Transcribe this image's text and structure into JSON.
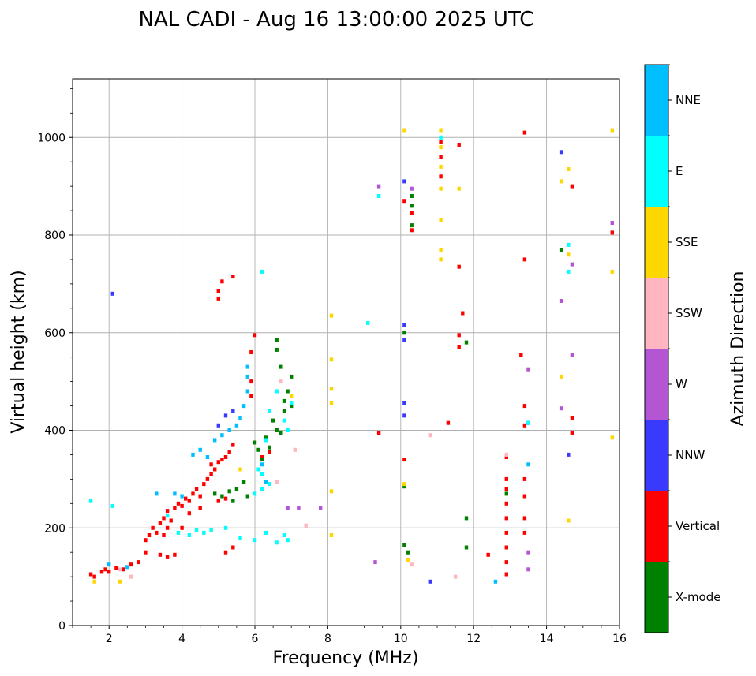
{
  "chart_data": {
    "type": "scatter",
    "title": "NAL CADI - Aug 16 13:00:00 2025 UTC",
    "xlabel": "Frequency (MHz)",
    "ylabel": "Virtual height (km)",
    "xlim": [
      1,
      16
    ],
    "ylim": [
      0,
      1120
    ],
    "xticks": [
      "2",
      "4",
      "6",
      "8",
      "10",
      "12",
      "14",
      "16"
    ],
    "yticks": [
      "0",
      "200",
      "400",
      "600",
      "800",
      "1000"
    ],
    "grid": true,
    "colorbar": {
      "title": "Azimuth Direction",
      "categories": [
        "X-mode",
        "Vertical",
        "NNW",
        "W",
        "SSW",
        "SSE",
        "E",
        "NNE"
      ],
      "colors": [
        "#008000",
        "#ff0000",
        "#3a3aff",
        "#b455d4",
        "#ffb6c1",
        "#ffd700",
        "#00ffff",
        "#00bfff"
      ]
    },
    "series": [
      {
        "name": "Vertical",
        "points": [
          [
            1.5,
            105
          ],
          [
            1.6,
            100
          ],
          [
            1.8,
            110
          ],
          [
            1.9,
            115
          ],
          [
            2.0,
            110
          ],
          [
            2.2,
            118
          ],
          [
            2.4,
            115
          ],
          [
            2.6,
            125
          ],
          [
            2.8,
            130
          ],
          [
            3.0,
            150
          ],
          [
            3.0,
            175
          ],
          [
            3.1,
            185
          ],
          [
            3.2,
            200
          ],
          [
            3.3,
            190
          ],
          [
            3.4,
            210
          ],
          [
            3.5,
            220
          ],
          [
            3.6,
            235
          ],
          [
            3.7,
            215
          ],
          [
            3.8,
            240
          ],
          [
            3.9,
            250
          ],
          [
            4.0,
            245
          ],
          [
            4.1,
            260
          ],
          [
            4.2,
            255
          ],
          [
            4.3,
            270
          ],
          [
            4.4,
            280
          ],
          [
            4.5,
            265
          ],
          [
            4.6,
            290
          ],
          [
            4.7,
            300
          ],
          [
            4.8,
            310
          ],
          [
            4.9,
            320
          ],
          [
            5.0,
            335
          ],
          [
            5.1,
            340
          ],
          [
            5.2,
            345
          ],
          [
            5.3,
            355
          ],
          [
            5.4,
            370
          ],
          [
            5.0,
            255
          ],
          [
            5.2,
            260
          ],
          [
            4.2,
            230
          ],
          [
            4.0,
            200
          ],
          [
            3.6,
            200
          ],
          [
            3.5,
            185
          ],
          [
            4.5,
            240
          ],
          [
            4.8,
            330
          ],
          [
            3.4,
            145
          ],
          [
            3.6,
            140
          ],
          [
            3.8,
            145
          ],
          [
            5.2,
            150
          ],
          [
            5.4,
            160
          ],
          [
            5.9,
            560
          ],
          [
            5.9,
            500
          ],
          [
            5.9,
            470
          ],
          [
            6.0,
            595
          ],
          [
            5.1,
            705
          ],
          [
            5.0,
            670
          ],
          [
            5.0,
            685
          ],
          [
            5.4,
            715
          ],
          [
            10.1,
            340
          ],
          [
            10.1,
            870
          ],
          [
            10.3,
            810
          ],
          [
            10.3,
            845
          ],
          [
            11.1,
            960
          ],
          [
            11.1,
            920
          ],
          [
            11.1,
            990
          ],
          [
            11.6,
            985
          ],
          [
            11.6,
            735
          ],
          [
            11.6,
            595
          ],
          [
            11.6,
            570
          ],
          [
            11.7,
            640
          ],
          [
            11.3,
            415
          ],
          [
            12.9,
            105
          ],
          [
            12.9,
            130
          ],
          [
            12.9,
            160
          ],
          [
            12.9,
            190
          ],
          [
            12.9,
            220
          ],
          [
            12.9,
            250
          ],
          [
            12.9,
            280
          ],
          [
            12.9,
            300
          ],
          [
            12.9,
            345
          ],
          [
            13.3,
            555
          ],
          [
            13.4,
            750
          ],
          [
            13.4,
            1010
          ],
          [
            13.4,
            450
          ],
          [
            13.4,
            410
          ],
          [
            13.4,
            300
          ],
          [
            13.4,
            265
          ],
          [
            13.4,
            220
          ],
          [
            13.4,
            190
          ],
          [
            12.4,
            145
          ],
          [
            14.7,
            900
          ],
          [
            14.7,
            425
          ],
          [
            14.7,
            395
          ],
          [
            15.8,
            805
          ],
          [
            9.4,
            395
          ],
          [
            6.2,
            345
          ],
          [
            6.4,
            355
          ]
        ]
      },
      {
        "name": "X-mode",
        "points": [
          [
            6.0,
            375
          ],
          [
            6.1,
            360
          ],
          [
            6.2,
            340
          ],
          [
            6.3,
            385
          ],
          [
            6.4,
            365
          ],
          [
            6.5,
            420
          ],
          [
            6.6,
            400
          ],
          [
            6.7,
            395
          ],
          [
            6.8,
            460
          ],
          [
            6.9,
            480
          ],
          [
            7.0,
            510
          ],
          [
            6.7,
            530
          ],
          [
            6.8,
            440
          ],
          [
            6.6,
            585
          ],
          [
            6.6,
            565
          ],
          [
            7.0,
            450
          ],
          [
            4.9,
            270
          ],
          [
            5.1,
            265
          ],
          [
            5.3,
            275
          ],
          [
            5.4,
            255
          ],
          [
            5.5,
            280
          ],
          [
            5.7,
            295
          ],
          [
            5.8,
            265
          ],
          [
            10.1,
            600
          ],
          [
            10.1,
            285
          ],
          [
            10.1,
            165
          ],
          [
            10.2,
            150
          ],
          [
            10.3,
            860
          ],
          [
            10.3,
            880
          ],
          [
            10.3,
            820
          ],
          [
            11.8,
            580
          ],
          [
            11.8,
            220
          ],
          [
            11.8,
            160
          ],
          [
            12.9,
            270
          ],
          [
            14.4,
            770
          ]
        ]
      },
      {
        "name": "NNW",
        "points": [
          [
            2.1,
            680
          ],
          [
            5.0,
            410
          ],
          [
            5.2,
            430
          ],
          [
            5.4,
            440
          ],
          [
            10.1,
            455
          ],
          [
            10.1,
            430
          ],
          [
            10.1,
            615
          ],
          [
            10.1,
            585
          ],
          [
            10.1,
            910
          ],
          [
            10.8,
            90
          ],
          [
            13.5,
            415
          ],
          [
            14.4,
            970
          ],
          [
            14.6,
            350
          ]
        ]
      },
      {
        "name": "W",
        "points": [
          [
            9.4,
            900
          ],
          [
            10.3,
            895
          ],
          [
            13.5,
            525
          ],
          [
            13.5,
            150
          ],
          [
            13.5,
            115
          ],
          [
            14.4,
            665
          ],
          [
            14.4,
            445
          ],
          [
            14.7,
            555
          ],
          [
            14.7,
            740
          ],
          [
            15.8,
            825
          ],
          [
            6.9,
            240
          ],
          [
            7.2,
            240
          ],
          [
            7.8,
            240
          ],
          [
            9.3,
            130
          ]
        ]
      },
      {
        "name": "SSW",
        "points": [
          [
            2.3,
            115
          ],
          [
            2.6,
            100
          ],
          [
            10.3,
            125
          ],
          [
            10.8,
            390
          ],
          [
            11.5,
            100
          ],
          [
            12.9,
            350
          ],
          [
            6.7,
            500
          ],
          [
            7.1,
            360
          ],
          [
            6.6,
            295
          ],
          [
            7.4,
            205
          ]
        ]
      },
      {
        "name": "SSE",
        "points": [
          [
            1.6,
            90
          ],
          [
            2.3,
            90
          ],
          [
            8.1,
            635
          ],
          [
            8.1,
            545
          ],
          [
            8.1,
            485
          ],
          [
            8.1,
            455
          ],
          [
            8.1,
            275
          ],
          [
            8.1,
            185
          ],
          [
            10.1,
            1015
          ],
          [
            10.1,
            290
          ],
          [
            10.2,
            135
          ],
          [
            11.1,
            1015
          ],
          [
            11.1,
            980
          ],
          [
            11.1,
            940
          ],
          [
            11.1,
            895
          ],
          [
            11.1,
            830
          ],
          [
            11.1,
            770
          ],
          [
            11.1,
            750
          ],
          [
            11.6,
            895
          ],
          [
            14.4,
            910
          ],
          [
            14.4,
            510
          ],
          [
            14.6,
            935
          ],
          [
            14.6,
            760
          ],
          [
            14.6,
            215
          ],
          [
            15.8,
            1015
          ],
          [
            15.8,
            725
          ],
          [
            15.8,
            385
          ],
          [
            5.6,
            320
          ],
          [
            7.0,
            470
          ]
        ]
      },
      {
        "name": "E",
        "points": [
          [
            1.5,
            255
          ],
          [
            2.1,
            245
          ],
          [
            3.6,
            225
          ],
          [
            3.9,
            190
          ],
          [
            4.2,
            185
          ],
          [
            4.4,
            195
          ],
          [
            4.6,
            190
          ],
          [
            4.8,
            195
          ],
          [
            5.2,
            200
          ],
          [
            5.6,
            180
          ],
          [
            6.0,
            175
          ],
          [
            6.3,
            190
          ],
          [
            6.6,
            170
          ],
          [
            6.8,
            185
          ],
          [
            6.9,
            175
          ],
          [
            6.0,
            270
          ],
          [
            6.2,
            280
          ],
          [
            6.4,
            290
          ],
          [
            6.1,
            320
          ],
          [
            6.2,
            310
          ],
          [
            6.3,
            380
          ],
          [
            6.4,
            440
          ],
          [
            6.6,
            480
          ],
          [
            6.8,
            420
          ],
          [
            6.9,
            400
          ],
          [
            7.0,
            455
          ],
          [
            6.2,
            725
          ],
          [
            9.1,
            620
          ],
          [
            9.4,
            880
          ],
          [
            11.1,
            1000
          ],
          [
            14.6,
            780
          ],
          [
            14.6,
            725
          ],
          [
            13.5,
            415
          ]
        ]
      },
      {
        "name": "NNE",
        "points": [
          [
            4.3,
            350
          ],
          [
            4.5,
            360
          ],
          [
            4.7,
            345
          ],
          [
            4.9,
            380
          ],
          [
            5.1,
            390
          ],
          [
            5.3,
            400
          ],
          [
            5.5,
            410
          ],
          [
            5.6,
            425
          ],
          [
            5.7,
            450
          ],
          [
            5.8,
            480
          ],
          [
            5.8,
            510
          ],
          [
            5.8,
            530
          ],
          [
            3.8,
            270
          ],
          [
            4.0,
            265
          ],
          [
            3.3,
            270
          ],
          [
            2.5,
            120
          ],
          [
            2.0,
            125
          ],
          [
            12.6,
            90
          ],
          [
            13.5,
            330
          ],
          [
            6.2,
            330
          ],
          [
            6.3,
            295
          ]
        ]
      }
    ]
  }
}
